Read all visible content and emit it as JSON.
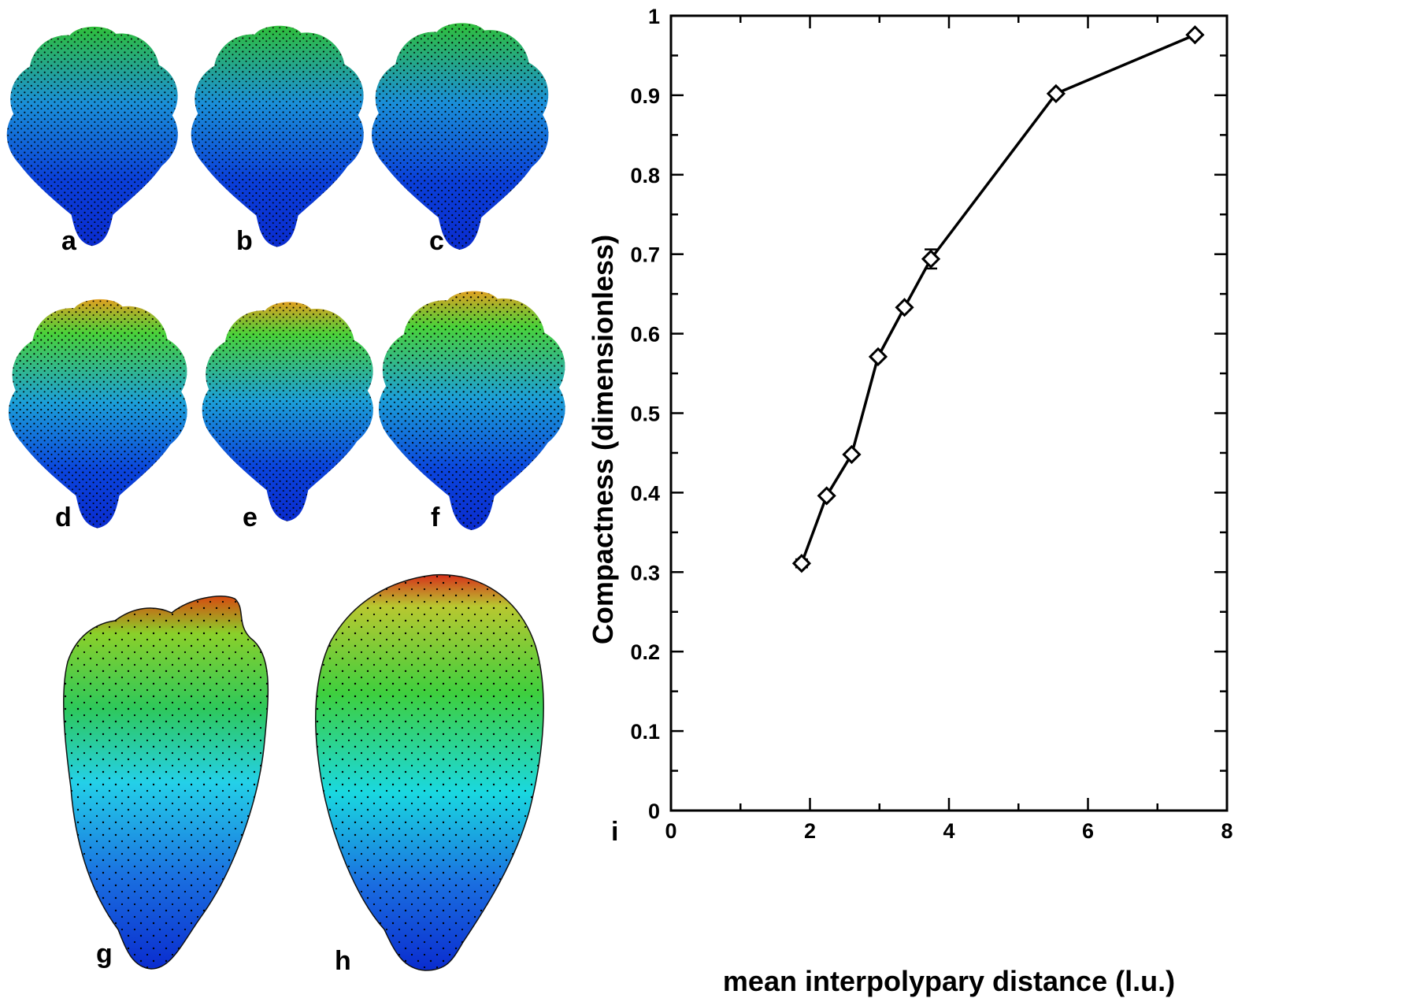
{
  "panels": {
    "labels": [
      "a",
      "b",
      "c",
      "d",
      "e",
      "f",
      "g",
      "h"
    ],
    "chart_label": "i"
  },
  "colors": {
    "surface_low": "#0a2fd6",
    "surface_mid": "#19c8e8",
    "surface_high": "#3cd23c",
    "surface_peak": "#e85010",
    "mesh_dots": "#000000",
    "line": "#000000"
  },
  "chart_data": {
    "type": "line",
    "xlabel": "mean interpolypary distance (l.u.)",
    "ylabel": "Compactness (dimensionless)",
    "xlim": [
      0,
      8
    ],
    "ylim": [
      0,
      1
    ],
    "x_ticks": [
      0,
      2,
      4,
      6,
      8
    ],
    "y_ticks": [
      0,
      0.1,
      0.2,
      0.3,
      0.4,
      0.5,
      0.6,
      0.7,
      0.8,
      0.9,
      1
    ],
    "x_tick_labels": [
      "0",
      "2",
      "4",
      "6",
      "8"
    ],
    "y_tick_labels": [
      "0",
      "0.1",
      "0.2",
      "0.3",
      "0.4",
      "0.5",
      "0.6",
      "0.7",
      "0.8",
      "0.9",
      "1"
    ],
    "marker": "diamond",
    "grid": false,
    "series": [
      {
        "x": [
          1.88,
          2.24,
          2.6,
          2.98,
          3.36,
          3.74,
          5.54,
          7.54
        ],
        "y": [
          0.311,
          0.396,
          0.448,
          0.571,
          0.633,
          0.694,
          0.902,
          0.976
        ],
        "yerr": [
          0.005,
          0.003,
          0.003,
          0.003,
          0.003,
          0.012,
          0.003,
          0.003
        ]
      }
    ]
  }
}
